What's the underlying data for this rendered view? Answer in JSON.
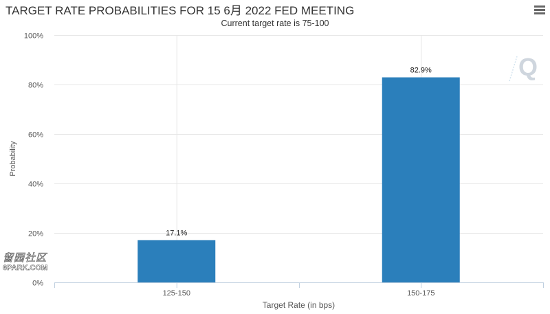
{
  "header": {
    "title": "TARGET RATE PROBABILITIES FOR 15 6月 2022 FED MEETING",
    "subtitle": "Current target rate is 75-100"
  },
  "watermark": {
    "logo_letter": "Q",
    "site_name_chars": "留园社区",
    "site_url": "6PARK.COM"
  },
  "icons": {
    "menu": "hamburger-menu-icon"
  },
  "colors": {
    "bar": "#2b7fbb",
    "grid": "#e6e6e6",
    "axis": "#c0d0e0",
    "text": "#333333",
    "label": "#555555"
  },
  "chart_data": {
    "type": "bar",
    "title": "TARGET RATE PROBABILITIES FOR 15 6月 2022 FED MEETING",
    "subtitle": "Current target rate is 75-100",
    "xlabel": "Target Rate (in bps)",
    "ylabel": "Probability",
    "categories": [
      "125-150",
      "150-175"
    ],
    "values": [
      17.1,
      82.9
    ],
    "data_labels": [
      "17.1%",
      "82.9%"
    ],
    "ylim": [
      0,
      100
    ],
    "yticks": [
      0,
      20,
      40,
      60,
      80,
      100
    ],
    "ytick_labels": [
      "0%",
      "20%",
      "40%",
      "60%",
      "80%",
      "100%"
    ],
    "grid": true,
    "legend": "none"
  }
}
